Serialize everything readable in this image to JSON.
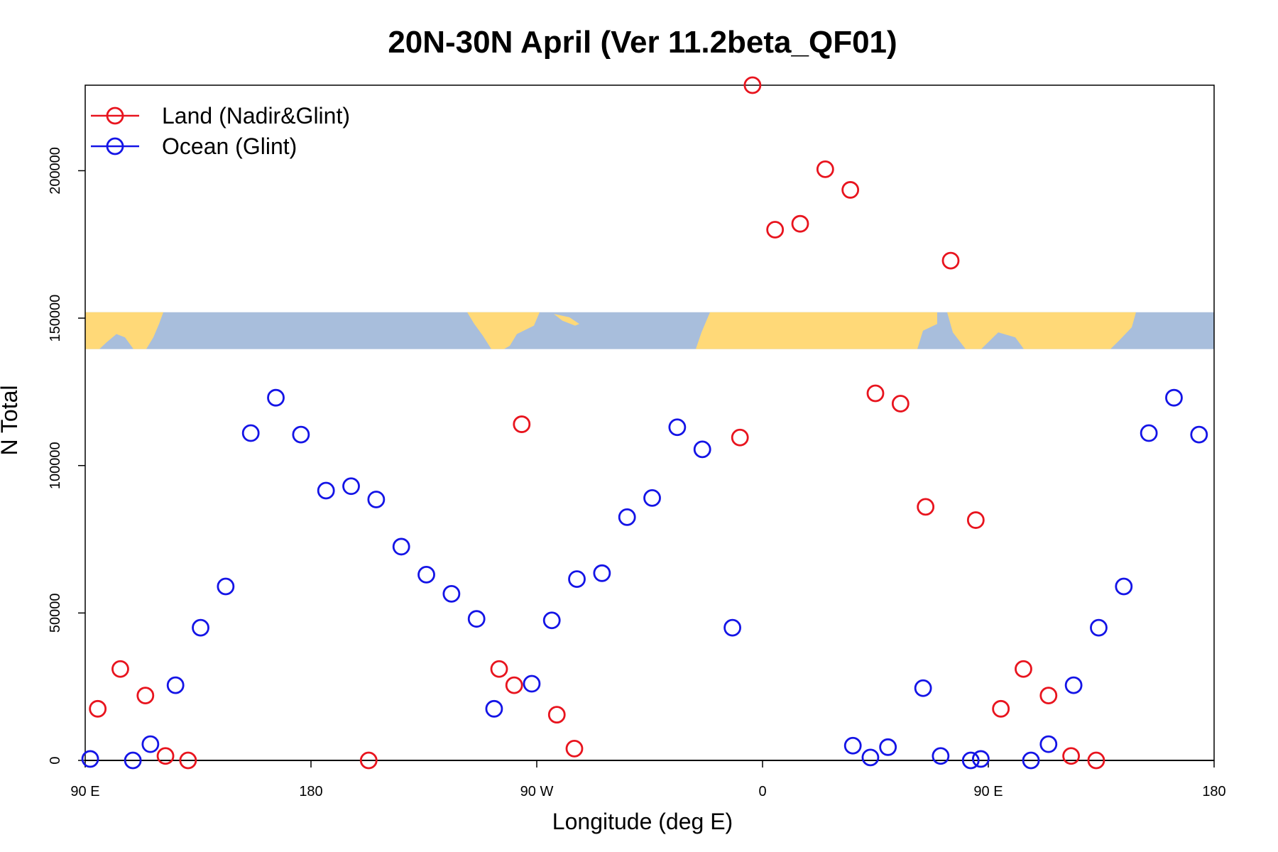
{
  "chart_data": {
    "type": "scatter",
    "title": "20N-30N April (Ver 11.2beta_QF01)",
    "xlabel": "Longitude (deg E)",
    "ylabel": "N Total",
    "xlim": [
      90,
      540
    ],
    "ylim": [
      0,
      229000
    ],
    "x_ticks": [
      {
        "value": 90,
        "label": "90 E"
      },
      {
        "value": 180,
        "label": "180"
      },
      {
        "value": 270,
        "label": "90 W"
      },
      {
        "value": 360,
        "label": "0"
      },
      {
        "value": 450,
        "label": "90 E"
      },
      {
        "value": 540,
        "label": "180"
      }
    ],
    "y_ticks": [
      {
        "value": 0,
        "label": "0"
      },
      {
        "value": 50000,
        "label": "50000"
      },
      {
        "value": 100000,
        "label": "100000"
      },
      {
        "value": 150000,
        "label": "150000"
      },
      {
        "value": 200000,
        "label": "200000"
      }
    ],
    "legend_position": "top-left",
    "map_strip": {
      "y_range": [
        139500,
        152000
      ],
      "land_color": "#FFD978",
      "ocean_color": "#A8BEDC"
    },
    "series": [
      {
        "name": "Land (Nadir&Glint)",
        "color": "#E8141E",
        "points": [
          [
            95,
            17500
          ],
          [
            104,
            31000
          ],
          [
            114,
            22000
          ],
          [
            122,
            1500
          ],
          [
            131,
            0
          ],
          [
            203,
            0
          ],
          [
            255,
            31000
          ],
          [
            264,
            114000
          ],
          [
            261,
            25500
          ],
          [
            278,
            15500
          ],
          [
            285,
            4000
          ],
          [
            351,
            109500
          ],
          [
            356,
            229000
          ],
          [
            365,
            180000
          ],
          [
            375,
            182000
          ],
          [
            385,
            200500
          ],
          [
            395,
            193500
          ],
          [
            405,
            124500
          ],
          [
            415,
            121000
          ],
          [
            425,
            86000
          ],
          [
            435,
            169500
          ],
          [
            445,
            81500
          ],
          [
            455,
            17500
          ],
          [
            464,
            31000
          ],
          [
            474,
            22000
          ],
          [
            483,
            1500
          ],
          [
            493,
            0
          ]
        ]
      },
      {
        "name": "Ocean (Glint)",
        "color": "#1414E6",
        "points": [
          [
            92,
            500
          ],
          [
            109,
            0
          ],
          [
            116,
            5500
          ],
          [
            126,
            25500
          ],
          [
            136,
            45000
          ],
          [
            146,
            59000
          ],
          [
            156,
            111000
          ],
          [
            166,
            123000
          ],
          [
            176,
            110500
          ],
          [
            186,
            91500
          ],
          [
            196,
            93000
          ],
          [
            206,
            88500
          ],
          [
            216,
            72500
          ],
          [
            226,
            63000
          ],
          [
            236,
            56500
          ],
          [
            246,
            48000
          ],
          [
            253,
            17500
          ],
          [
            268,
            26000
          ],
          [
            276,
            47500
          ],
          [
            286,
            61500
          ],
          [
            296,
            63500
          ],
          [
            306,
            82500
          ],
          [
            316,
            89000
          ],
          [
            326,
            113000
          ],
          [
            336,
            105500
          ],
          [
            348,
            45000
          ],
          [
            396,
            5000
          ],
          [
            403,
            1000
          ],
          [
            410,
            4500
          ],
          [
            424,
            24500
          ],
          [
            431,
            1500
          ],
          [
            443,
            0
          ],
          [
            447,
            500
          ],
          [
            467,
            0
          ],
          [
            474,
            5500
          ],
          [
            484,
            25500
          ],
          [
            494,
            45000
          ],
          [
            504,
            59000
          ],
          [
            514,
            111000
          ],
          [
            524,
            123000
          ],
          [
            534,
            110500
          ]
        ]
      }
    ]
  }
}
